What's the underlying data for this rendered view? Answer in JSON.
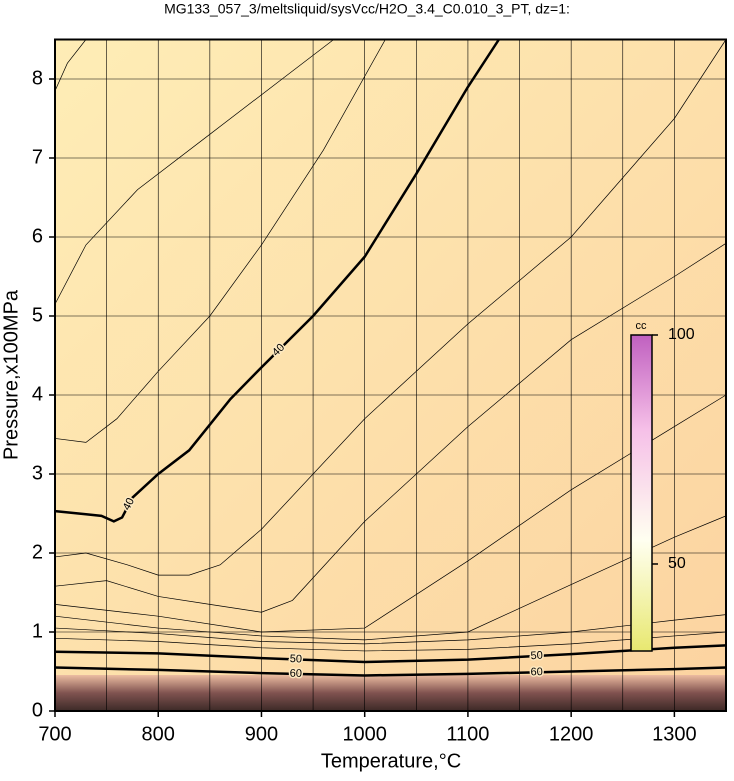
{
  "chart_data": {
    "type": "contour",
    "title": "MG133_057_3/meltsliquid/sysVcc/H2O_3.4_C0.010_3_PT, dz=1:",
    "xlabel": "Temperature,°C",
    "ylabel": "Pressure,x100MPa",
    "xlim": [
      700,
      1350
    ],
    "ylim": [
      0,
      8.5
    ],
    "xticks": [
      700,
      800,
      900,
      1000,
      1100,
      1200,
      1300
    ],
    "yticks": [
      0,
      1,
      2,
      3,
      4,
      5,
      6,
      7,
      8
    ],
    "xgrid": [
      750,
      800,
      850,
      900,
      950,
      1000,
      1050,
      1100,
      1150,
      1200,
      1250,
      1300
    ],
    "grid": true,
    "contours": [
      {
        "x": [
          700,
          730,
          745,
          757,
          765,
          775,
          800,
          830,
          870,
          900,
          950,
          1000,
          1050,
          1100,
          1130
        ],
        "y": [
          2.53,
          2.49,
          2.47,
          2.4,
          2.45,
          2.7,
          3.0,
          3.3,
          3.95,
          4.35,
          5.0,
          5.75,
          6.8,
          7.9,
          8.5
        ],
        "bold": true,
        "labels": [
          "40",
          "40"
        ]
      },
      {
        "x": [
          700,
          712,
          730
        ],
        "y": [
          7.85,
          8.2,
          8.5
        ]
      },
      {
        "x": [
          700,
          730,
          780,
          850,
          920,
          970
        ],
        "y": [
          5.15,
          5.9,
          6.6,
          7.3,
          8.0,
          8.5
        ]
      },
      {
        "x": [
          700,
          730,
          760,
          800,
          850,
          900,
          960,
          1020
        ],
        "y": [
          3.45,
          3.4,
          3.7,
          4.3,
          5.0,
          5.9,
          7.1,
          8.5
        ]
      },
      {
        "x": [
          700,
          730,
          770,
          800,
          830,
          860,
          900,
          1000,
          1100,
          1200,
          1300,
          1350
        ],
        "y": [
          1.95,
          2.0,
          1.85,
          1.72,
          1.72,
          1.85,
          2.3,
          3.7,
          4.9,
          6.0,
          7.5,
          8.5
        ]
      },
      {
        "x": [
          700,
          750,
          800,
          850,
          900,
          930,
          1000,
          1100,
          1200,
          1300,
          1350
        ],
        "y": [
          1.58,
          1.65,
          1.45,
          1.35,
          1.25,
          1.4,
          2.4,
          3.6,
          4.7,
          5.5,
          5.92
        ]
      },
      {
        "x": [
          700,
          800,
          900,
          1000,
          1100,
          1200,
          1300,
          1350
        ],
        "y": [
          1.35,
          1.2,
          1.0,
          1.05,
          1.9,
          2.8,
          3.6,
          4.0
        ]
      },
      {
        "x": [
          700,
          800,
          900,
          1000,
          1100,
          1200,
          1300,
          1350
        ],
        "y": [
          1.2,
          1.05,
          0.95,
          0.9,
          1.0,
          1.6,
          2.2,
          2.47
        ]
      },
      {
        "x": [
          700,
          800,
          900,
          1000,
          1100,
          1200,
          1300,
          1350
        ],
        "y": [
          1.05,
          0.98,
          0.88,
          0.85,
          0.9,
          1.0,
          1.15,
          1.22
        ]
      },
      {
        "x": [
          700,
          800,
          900,
          1000,
          1100,
          1200,
          1300,
          1350
        ],
        "y": [
          0.92,
          0.88,
          0.8,
          0.76,
          0.78,
          0.85,
          0.95,
          1.0
        ]
      },
      {
        "x": [
          700,
          800,
          900,
          1000,
          1100,
          1200,
          1300,
          1350
        ],
        "y": [
          0.75,
          0.73,
          0.67,
          0.62,
          0.65,
          0.72,
          0.8,
          0.83
        ],
        "bold": true,
        "labels": [
          "50",
          "50"
        ]
      },
      {
        "x": [
          700,
          800,
          900,
          1000,
          1100,
          1200,
          1300,
          1350
        ],
        "y": [
          0.55,
          0.52,
          0.48,
          0.45,
          0.47,
          0.5,
          0.53,
          0.55
        ],
        "bold": true,
        "labels": [
          "60",
          "60"
        ]
      }
    ],
    "colorbar": {
      "title": "cc",
      "lim": [
        31,
        100
      ],
      "ticks": [
        50,
        100
      ]
    }
  }
}
